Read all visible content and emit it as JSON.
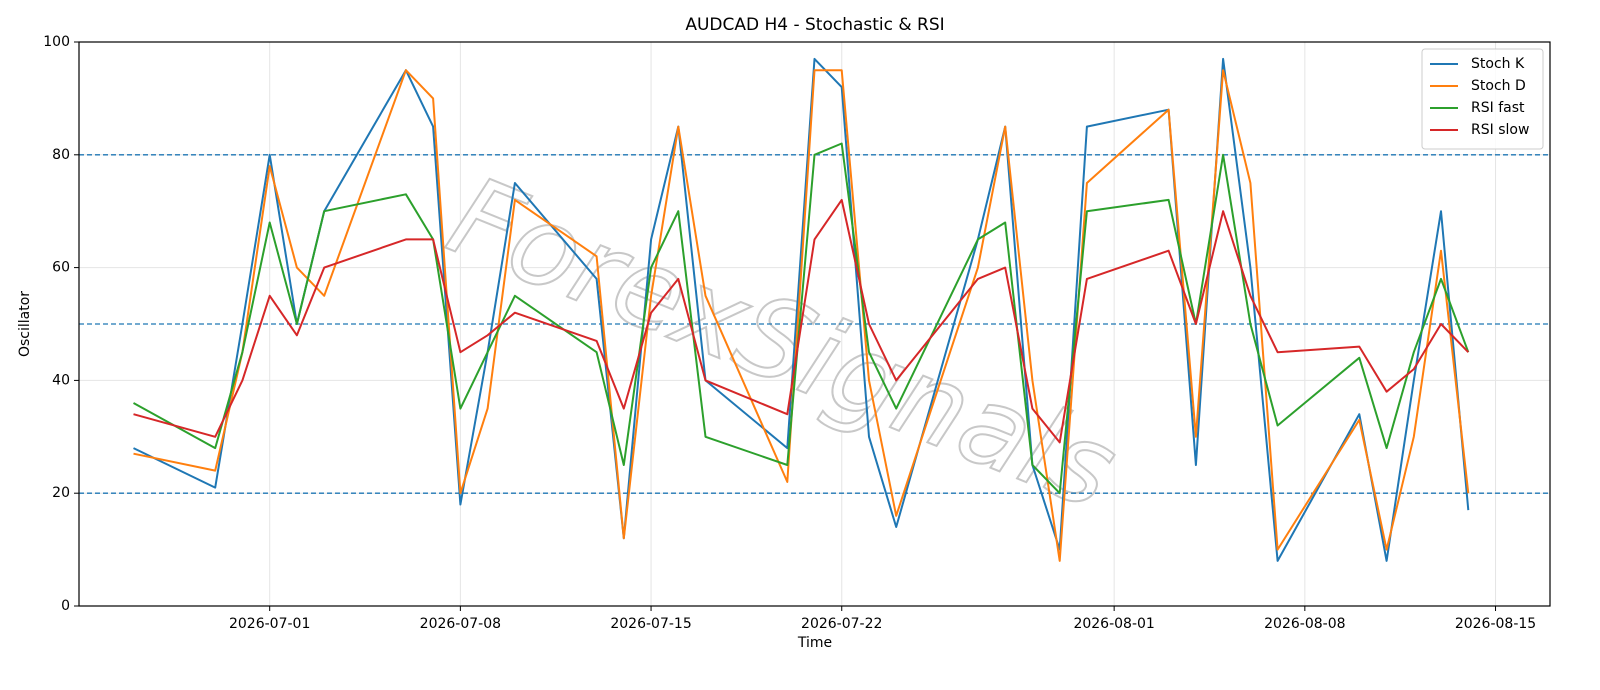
{
  "chart_data": {
    "type": "line",
    "title": "AUDCAD H4 - Stochastic & RSI",
    "xlabel": "Time",
    "ylabel": "Oscillator",
    "watermark": "ForexSignals",
    "x": [
      "2026-06-26",
      "2026-06-29",
      "2026-06-30",
      "2026-07-01",
      "2026-07-02",
      "2026-07-03",
      "2026-07-06",
      "2026-07-07",
      "2026-07-08",
      "2026-07-09",
      "2026-07-10",
      "2026-07-13",
      "2026-07-14",
      "2026-07-15",
      "2026-07-16",
      "2026-07-17",
      "2026-07-20",
      "2026-07-21",
      "2026-07-22",
      "2026-07-23",
      "2026-07-24",
      "2026-07-27",
      "2026-07-28",
      "2026-07-29",
      "2026-07-30",
      "2026-07-31",
      "2026-08-03",
      "2026-08-04",
      "2026-08-05",
      "2026-08-06",
      "2026-08-07",
      "2026-08-10",
      "2026-08-11",
      "2026-08-12",
      "2026-08-13",
      "2026-08-14"
    ],
    "series": [
      {
        "name": "Stoch K",
        "color": "#1f77b4",
        "values": [
          28,
          21,
          50,
          80,
          50,
          70,
          95,
          85,
          18,
          45,
          75,
          58,
          12,
          65,
          85,
          40,
          28,
          97,
          92,
          30,
          14,
          65,
          85,
          25,
          10,
          85,
          88,
          25,
          97,
          60,
          8,
          34,
          8,
          40,
          70,
          17
        ]
      },
      {
        "name": "Stoch D",
        "color": "#ff7f0e",
        "values": [
          27,
          24,
          45,
          78,
          60,
          55,
          95,
          90,
          20,
          35,
          72,
          62,
          12,
          55,
          85,
          55,
          22,
          95,
          95,
          40,
          16,
          60,
          85,
          40,
          8,
          75,
          88,
          30,
          95,
          75,
          10,
          33,
          10,
          30,
          63,
          20
        ]
      },
      {
        "name": "RSI fast",
        "color": "#2ca02c",
        "values": [
          36,
          28,
          45,
          68,
          50,
          70,
          73,
          65,
          35,
          45,
          55,
          45,
          25,
          60,
          70,
          30,
          25,
          80,
          82,
          45,
          35,
          65,
          68,
          25,
          20,
          70,
          72,
          50,
          80,
          50,
          32,
          44,
          28,
          45,
          58,
          45
        ]
      },
      {
        "name": "RSI slow",
        "color": "#d62728",
        "values": [
          34,
          30,
          40,
          55,
          48,
          60,
          65,
          65,
          45,
          48,
          52,
          47,
          35,
          52,
          58,
          40,
          34,
          65,
          72,
          50,
          40,
          58,
          60,
          35,
          29,
          58,
          63,
          50,
          70,
          55,
          45,
          46,
          38,
          42,
          50,
          45
        ]
      }
    ],
    "hlines": [
      20,
      50,
      80
    ],
    "hline_color": "#1f77b4",
    "xlim": [
      "2026-06-24",
      "2026-08-17"
    ],
    "xticks": [
      "2026-07-01",
      "2026-07-08",
      "2026-07-15",
      "2026-07-22",
      "2026-08-01",
      "2026-08-08",
      "2026-08-15"
    ],
    "ylim": [
      0,
      100
    ],
    "yticks": [
      0,
      20,
      40,
      60,
      80,
      100
    ],
    "grid": true,
    "legend": "upper right"
  }
}
